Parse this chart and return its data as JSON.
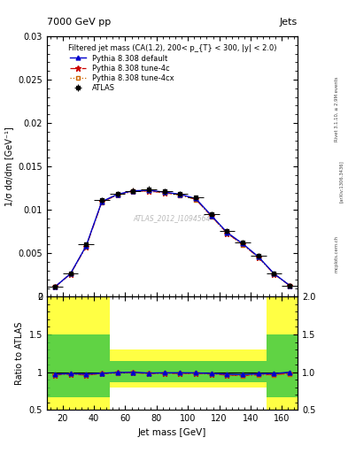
{
  "title_left": "7000 GeV pp",
  "title_right": "Jets",
  "right_label1": "Rivet 3.1.10, ≥ 2.9M events",
  "right_label2": "[arXiv:1306.3436]",
  "right_label3": "mcplots.cern.ch",
  "watermark": "ATLAS_2012_I1094564",
  "plot_title": "Filtered jet mass (CA(1.2), 200< p_{T} < 300, |y| < 2.0)",
  "xlabel": "Jet mass [GeV]",
  "ylabel": "1/σ dσ/dm [GeV⁻¹]",
  "ylabel_ratio": "Ratio to ATLAS",
  "xlim": [
    10,
    170
  ],
  "ylim_main": [
    0.0,
    0.03
  ],
  "ylim_ratio": [
    0.5,
    2.0
  ],
  "yticks_main": [
    0.0,
    0.005,
    0.01,
    0.015,
    0.02,
    0.025,
    0.03
  ],
  "yticks_ratio": [
    0.5,
    1.0,
    1.5,
    2.0
  ],
  "xticks": [
    20,
    40,
    60,
    80,
    100,
    120,
    140,
    160
  ],
  "atlas_x": [
    15,
    25,
    35,
    45,
    55,
    65,
    75,
    85,
    95,
    105,
    115,
    125,
    135,
    145,
    155,
    165
  ],
  "atlas_y": [
    0.00115,
    0.0027,
    0.006,
    0.0111,
    0.01185,
    0.0122,
    0.0124,
    0.01215,
    0.0119,
    0.0114,
    0.0095,
    0.0076,
    0.0063,
    0.0047,
    0.0027,
    0.0013
  ],
  "atlas_xerr": [
    5,
    5,
    5,
    5,
    5,
    5,
    5,
    5,
    5,
    5,
    5,
    5,
    5,
    5,
    5,
    5
  ],
  "atlas_yerr": [
    0.0001,
    0.00015,
    0.00025,
    0.00035,
    0.00035,
    0.00035,
    0.00035,
    0.00035,
    0.0003,
    0.0003,
    0.0003,
    0.0003,
    0.0003,
    0.0003,
    0.0002,
    0.00015
  ],
  "default_x": [
    15,
    25,
    35,
    45,
    55,
    65,
    75,
    85,
    95,
    105,
    115,
    125,
    135,
    145,
    155,
    165
  ],
  "default_y": [
    0.00112,
    0.00265,
    0.00585,
    0.01095,
    0.0118,
    0.0122,
    0.01225,
    0.01205,
    0.0118,
    0.0113,
    0.00935,
    0.0074,
    0.0061,
    0.0046,
    0.00265,
    0.0013
  ],
  "tune4c_x": [
    15,
    25,
    35,
    45,
    55,
    65,
    75,
    85,
    95,
    105,
    115,
    125,
    135,
    145,
    155,
    165
  ],
  "tune4c_y": [
    0.00111,
    0.00263,
    0.00578,
    0.0109,
    0.01175,
    0.01215,
    0.01218,
    0.01198,
    0.01172,
    0.01122,
    0.00928,
    0.00732,
    0.00602,
    0.00455,
    0.00262,
    0.00128
  ],
  "tune4cx_x": [
    15,
    25,
    35,
    45,
    55,
    65,
    75,
    85,
    95,
    105,
    115,
    125,
    135,
    145,
    155,
    165
  ],
  "tune4cx_y": [
    0.00111,
    0.00263,
    0.00577,
    0.01088,
    0.01173,
    0.01213,
    0.01215,
    0.01195,
    0.01169,
    0.01119,
    0.00925,
    0.00729,
    0.00599,
    0.00453,
    0.0026,
    0.00127
  ],
  "ratio_default": [
    0.974,
    0.981,
    0.975,
    0.986,
    0.996,
    1.0,
    0.988,
    0.992,
    0.992,
    0.991,
    0.984,
    0.974,
    0.968,
    0.979,
    0.981,
    1.0
  ],
  "ratio_tune4c": [
    0.965,
    0.974,
    0.963,
    0.982,
    0.991,
    0.996,
    0.982,
    0.986,
    0.985,
    0.984,
    0.977,
    0.963,
    0.956,
    0.968,
    0.97,
    0.985
  ],
  "ratio_tune4cx": [
    0.965,
    0.974,
    0.962,
    0.98,
    0.99,
    0.994,
    0.98,
    0.984,
    0.983,
    0.981,
    0.974,
    0.96,
    0.951,
    0.964,
    0.963,
    0.977
  ],
  "yellow_lo_vals": [
    0.5,
    0.5,
    0.8,
    0.8,
    0.8,
    0.8,
    0.5,
    0.5
  ],
  "yellow_hi_vals": [
    2.0,
    2.0,
    1.3,
    1.3,
    1.3,
    1.3,
    2.0,
    2.0
  ],
  "green_lo_vals": [
    0.67,
    0.67,
    0.87,
    0.87,
    0.87,
    0.87,
    0.67,
    0.67
  ],
  "green_hi_vals": [
    1.5,
    1.5,
    1.15,
    1.15,
    1.15,
    1.15,
    1.5,
    1.5
  ],
  "band_edges": [
    10,
    30,
    50,
    70,
    110,
    130,
    150,
    170
  ],
  "color_atlas": "#000000",
  "color_default": "#0000cc",
  "color_tune4c": "#cc0000",
  "color_tune4cx": "#cc6600",
  "color_yellow": "#ffff44",
  "color_green": "#44cc44",
  "color_watermark": "#bbbbbb",
  "bg_color": "#ffffff"
}
